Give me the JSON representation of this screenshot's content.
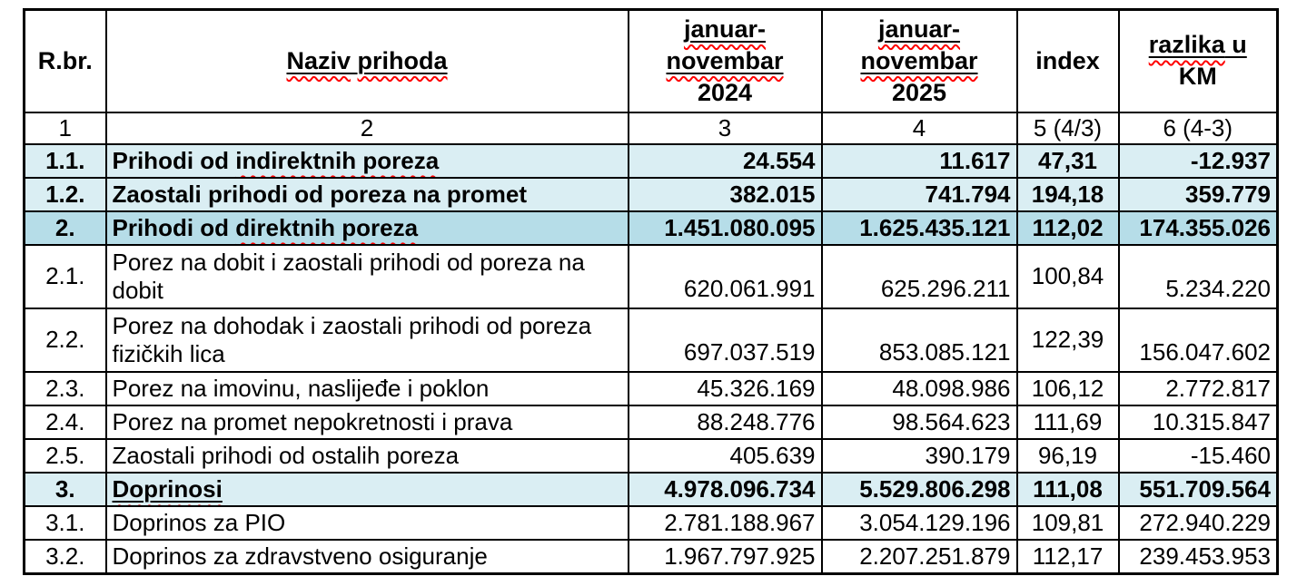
{
  "document": {
    "type": "word-table-screenshot",
    "colors": {
      "row_light": "#daeef3",
      "row_dark": "#b6dde8",
      "border": "#000000",
      "squiggle": "#ff0000",
      "text": "#000000"
    }
  },
  "table": {
    "header": {
      "cells": [
        {
          "name": "col-header-rbr",
          "lines": [
            [
              {
                "t": "R.br."
              }
            ]
          ]
        },
        {
          "name": "col-header-naziv",
          "lines": [
            [
              {
                "t": "Naziv",
                "u": true,
                "sq": true
              },
              {
                "t": " ",
                "u": true
              },
              {
                "t": "prihoda",
                "u": true,
                "sq": true
              }
            ]
          ]
        },
        {
          "name": "col-header-2024",
          "lines": [
            [
              {
                "t": "januar-",
                "u": true,
                "sq": true
              }
            ],
            [
              {
                "t": "novembar",
                "u": true,
                "sq": true
              }
            ],
            [
              {
                "t": "2024"
              }
            ]
          ]
        },
        {
          "name": "col-header-2025",
          "lines": [
            [
              {
                "t": "januar-",
                "u": true,
                "sq": true
              }
            ],
            [
              {
                "t": "novembar",
                "u": true,
                "sq": true
              }
            ],
            [
              {
                "t": "2025"
              }
            ]
          ]
        },
        {
          "name": "col-header-index",
          "lines": [
            [
              {
                "t": "index"
              }
            ]
          ]
        },
        {
          "name": "col-header-razlika",
          "lines": [
            [
              {
                "t": "razlika",
                "u": true,
                "sq": true
              },
              {
                "t": " u",
                "u": true
              }
            ],
            [
              {
                "t": "KM"
              }
            ]
          ]
        }
      ]
    },
    "subheader": [
      "1",
      "2",
      "3",
      "4",
      "5 (4/3)",
      "6 (4-3)"
    ],
    "rows": [
      {
        "id": "1.1.",
        "name": [
          {
            "t": "Prihodi od "
          },
          {
            "t": "indirektnih poreza",
            "sq": true
          }
        ],
        "v2024": "24.554",
        "v2025": "11.617",
        "index": "47,31",
        "diff": "-12.937",
        "highlight": "light",
        "bold": true,
        "tall": false
      },
      {
        "id": "1.2.",
        "name": [
          {
            "t": "Zaostali prihodi od poreza na promet"
          }
        ],
        "v2024": "382.015",
        "v2025": "741.794",
        "index": "194,18",
        "diff": "359.779",
        "highlight": "light",
        "bold": true,
        "tall": false
      },
      {
        "id": "2.",
        "name": [
          {
            "t": "Prihodi od "
          },
          {
            "t": "direktnih poreza",
            "sq": true
          }
        ],
        "v2024": "1.451.080.095",
        "v2025": "1.625.435.121",
        "index": "112,02",
        "diff": "174.355.026",
        "highlight": "dark",
        "bold": true,
        "tall": false
      },
      {
        "id": "2.1.",
        "name": [
          {
            "t": "Porez na dobit i zaostali prihodi od poreza na dobit"
          }
        ],
        "v2024": "620.061.991",
        "v2025": "625.296.211",
        "index": "100,84",
        "diff": "5.234.220",
        "highlight": "none",
        "bold": false,
        "tall": true
      },
      {
        "id": "2.2.",
        "name": [
          {
            "t": "Porez na dohodak i zaostali prihodi od poreza fizičkih lica"
          }
        ],
        "v2024": "697.037.519",
        "v2025": "853.085.121",
        "index": "122,39",
        "diff": "156.047.602",
        "highlight": "none",
        "bold": false,
        "tall": true
      },
      {
        "id": "2.3.",
        "name": [
          {
            "t": "Porez na imovinu, naslijeđe i poklon"
          }
        ],
        "v2024": "45.326.169",
        "v2025": "48.098.986",
        "index": "106,12",
        "diff": "2.772.817",
        "highlight": "none",
        "bold": false,
        "tall": false
      },
      {
        "id": "2.4.",
        "name": [
          {
            "t": "Porez na promet nepokretnosti i prava"
          }
        ],
        "v2024": "88.248.776",
        "v2025": "98.564.623",
        "index": "111,69",
        "diff": "10.315.847",
        "highlight": "none",
        "bold": false,
        "tall": false
      },
      {
        "id": "2.5.",
        "name": [
          {
            "t": "Zaostali prihodi od ostalih poreza"
          }
        ],
        "v2024": "405.639",
        "v2025": "390.179",
        "index": "96,19",
        "diff": "-15.460",
        "highlight": "none",
        "bold": false,
        "tall": false
      },
      {
        "id": "3.",
        "name": [
          {
            "t": "Doprinosi",
            "u": true,
            "sq": true
          }
        ],
        "v2024": "4.978.096.734",
        "v2025": "5.529.806.298",
        "index": "111,08",
        "diff": "551.709.564",
        "highlight": "light",
        "bold": true,
        "tall": false
      },
      {
        "id": "3.1.",
        "name": [
          {
            "t": "Doprinos za PIO"
          }
        ],
        "v2024": "2.781.188.967",
        "v2025": "3.054.129.196",
        "index": "109,81",
        "diff": "272.940.229",
        "highlight": "none",
        "bold": false,
        "tall": false
      },
      {
        "id": "3.2.",
        "name": [
          {
            "t": "Doprinos za zdravstveno osiguranje"
          }
        ],
        "v2024": "1.967.797.925",
        "v2025": "2.207.251.879",
        "index": "112,17",
        "diff": "239.453.953",
        "highlight": "none",
        "bold": false,
        "tall": false
      }
    ]
  }
}
